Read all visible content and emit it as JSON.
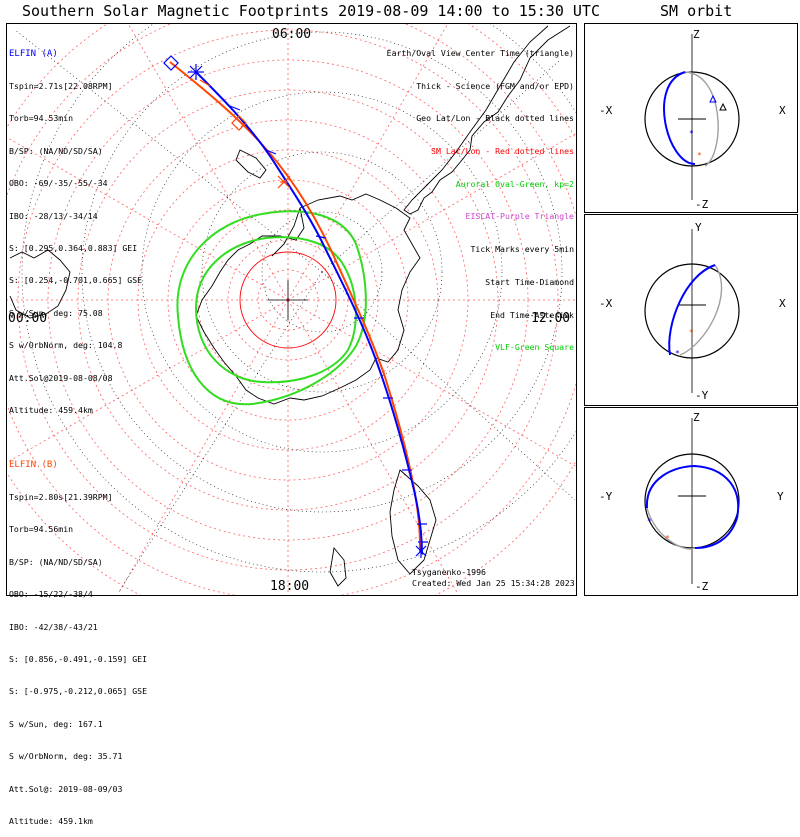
{
  "header": {
    "title": "Southern Solar Magnetic Footprints 2019-08-09 14:00 to 15:30 UTC",
    "orbit_title": "SM orbit"
  },
  "map": {
    "mlt_labels": {
      "top": "06:00",
      "left": "00:00",
      "right": "12:00",
      "bottom": "18:00"
    },
    "model": "Tsyganenko-1996",
    "created": "Created: Wed Jan 25 15:34:28 2023"
  },
  "elfin_a": {
    "name": "ELFIN (A)",
    "lines": [
      "Tspin=2.71s[22.08RPM]",
      "Torb=94.53min",
      "B/SP: (NA/ND/SD/SA)",
      "OBO: -69/-35/-55/-34",
      "IBO: -28/13/-34/14",
      "S: [0.295,0.364,0.883] GEI",
      "S: [0.254,-0.701,0.665] GSE",
      "S w/Sun, deg: 75.08",
      "S w/OrbNorm, deg: 104.8",
      "Att.Sol@2019-08-08/08",
      "Altitude: 459.4km"
    ],
    "color": "#0000ff"
  },
  "elfin_b": {
    "name": "ELFIN (B)",
    "lines": [
      "Tspin=2.80s[21.39RPM]",
      "Torb=94.56min",
      "B/SP: (NA/ND/SD/SA)",
      "OBO: -15/22/-38/4",
      "IBO: -42/38/-43/21",
      "S: [0.856,-0.491,-0.159] GEI",
      "S: [-0.975,-0.212,0.065] GSE",
      "S w/Sun, deg: 167.1",
      "S w/OrbNorm, deg: 35.71",
      "Att.Sol@: 2019-08-09/03",
      "Altitude: 459.1km"
    ],
    "color": "#ff4500"
  },
  "legend": [
    {
      "text": "Earth/Oval View Center Time (triangle)",
      "color": "#000000"
    },
    {
      "text": "Thick - Science (FGM and/or EPD)",
      "color": "#000000"
    },
    {
      "text": "Geo Lat/Lon - Black dotted lines",
      "color": "#000000"
    },
    {
      "text": "SM Lat/Lon - Red dotted lines",
      "color": "#ff0000"
    },
    {
      "text": "Auroral Oval-Green, kp=2",
      "color": "#00cc00"
    },
    {
      "text": "EISCAT-Purple Triangle",
      "color": "#cc44cc"
    },
    {
      "text": "Tick Marks every 5min",
      "color": "#000000"
    },
    {
      "text": "Start Time-Diamond",
      "color": "#000000"
    },
    {
      "text": "End Time-Asterisk",
      "color": "#000000"
    },
    {
      "text": "VLF-Green Square",
      "color": "#00cc00"
    }
  ],
  "orbit_panels": [
    {
      "top": "Z",
      "bottom": "-Z",
      "left": "-X",
      "right": "X"
    },
    {
      "top": "Y",
      "bottom": "-Y",
      "left": "-X",
      "right": "X"
    },
    {
      "top": "Z",
      "bottom": "-Z",
      "left": "-Y",
      "right": "Y"
    }
  ]
}
